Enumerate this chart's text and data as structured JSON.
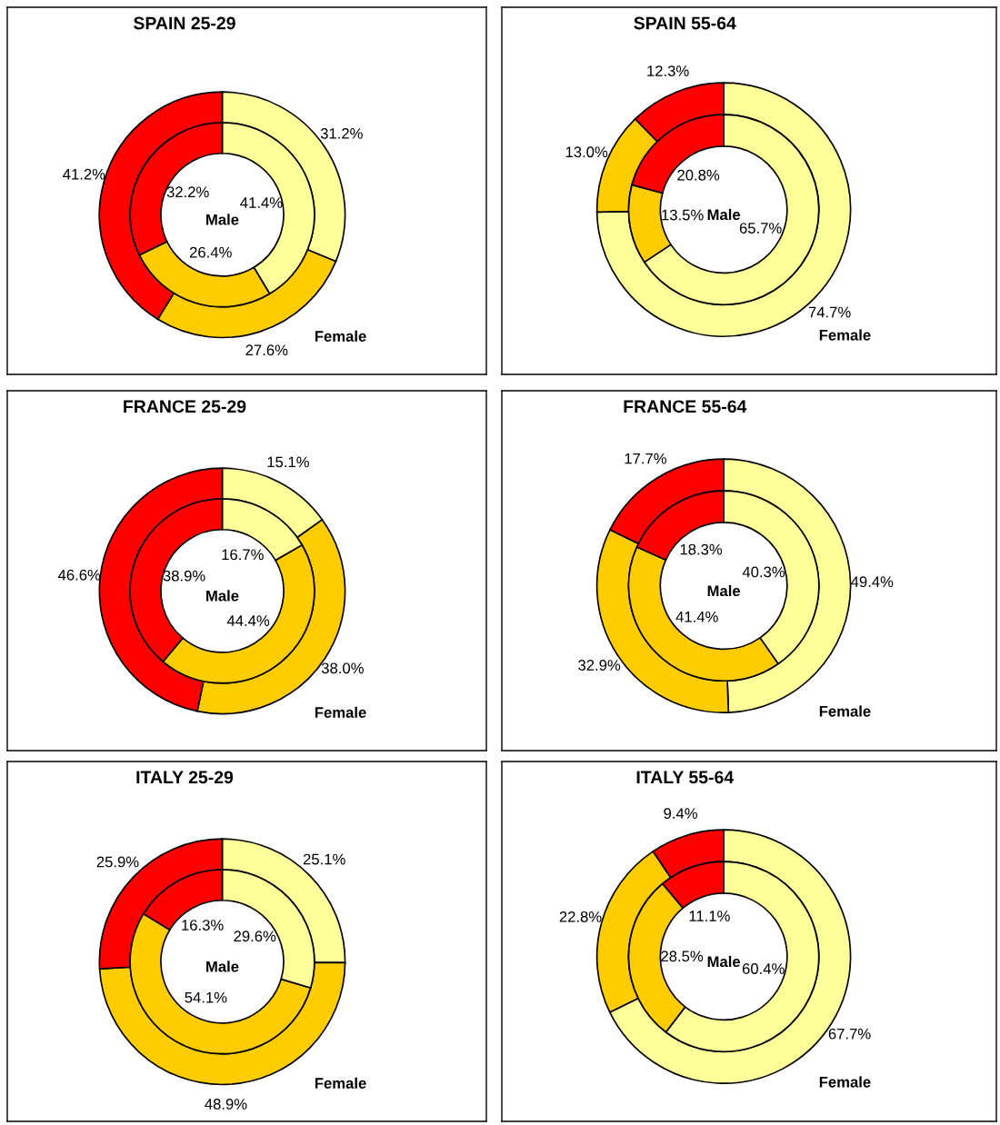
{
  "chart_data": [
    {
      "type": "donut",
      "title": "SPAIN 25-29",
      "categories": [
        null,
        null,
        null
      ],
      "colors": [
        "#ffff99",
        "#ffcc00",
        "#ff0000"
      ],
      "series": [
        {
          "name": "Male",
          "values": [
            41.4,
            26.4,
            32.2
          ],
          "value_labels": [
            "41.4%",
            "26.4%",
            "32.2%"
          ]
        },
        {
          "name": "Female",
          "values": [
            31.2,
            27.6,
            41.2
          ],
          "value_labels": [
            "31.2%",
            "27.6%",
            "41.2%"
          ]
        }
      ]
    },
    {
      "type": "donut",
      "title": "SPAIN 55-64",
      "categories": [
        null,
        null,
        null
      ],
      "colors": [
        "#ffff99",
        "#ffcc00",
        "#ff0000"
      ],
      "series": [
        {
          "name": "Male",
          "values": [
            65.7,
            13.5,
            20.8
          ],
          "value_labels": [
            "65.7%",
            "13.5%",
            "20.8%"
          ]
        },
        {
          "name": "Female",
          "values": [
            74.7,
            13.0,
            12.3
          ],
          "value_labels": [
            "74.7%",
            "13.0%",
            "12.3%"
          ]
        }
      ]
    },
    {
      "type": "donut",
      "title": "FRANCE 25-29",
      "categories": [
        null,
        null,
        null
      ],
      "colors": [
        "#ffff99",
        "#ffcc00",
        "#ff0000"
      ],
      "series": [
        {
          "name": "Male",
          "values": [
            16.7,
            44.4,
            38.9
          ],
          "value_labels": [
            "16.7%",
            "44.4%",
            "38.9%"
          ]
        },
        {
          "name": "Female",
          "values": [
            15.1,
            38.0,
            46.6
          ],
          "value_labels": [
            "15.1%",
            "38.0%",
            "46.6%"
          ]
        }
      ]
    },
    {
      "type": "donut",
      "title": "FRANCE 55-64",
      "categories": [
        null,
        null,
        null
      ],
      "colors": [
        "#ffff99",
        "#ffcc00",
        "#ff0000"
      ],
      "series": [
        {
          "name": "Male",
          "values": [
            40.3,
            41.4,
            18.3
          ],
          "value_labels": [
            "40.3%",
            "41.4%",
            "18.3%"
          ]
        },
        {
          "name": "Female",
          "values": [
            49.4,
            32.9,
            17.7
          ],
          "value_labels": [
            "49.4%",
            "32.9%",
            "17.7%"
          ]
        }
      ]
    },
    {
      "type": "donut",
      "title": "ITALY 25-29",
      "categories": [
        null,
        null,
        null
      ],
      "colors": [
        "#ffff99",
        "#ffcc00",
        "#ff0000"
      ],
      "series": [
        {
          "name": "Male",
          "values": [
            29.6,
            54.1,
            16.3
          ],
          "value_labels": [
            "29.6%",
            "54.1%",
            "16.3%"
          ]
        },
        {
          "name": "Female",
          "values": [
            25.1,
            48.9,
            25.9
          ],
          "value_labels": [
            "25.1%",
            "48.9%",
            "25.9%"
          ]
        }
      ]
    },
    {
      "type": "donut",
      "title": "ITALY 55-64",
      "categories": [
        null,
        null,
        null
      ],
      "colors": [
        "#ffff99",
        "#ffcc00",
        "#ff0000"
      ],
      "series": [
        {
          "name": "Male",
          "values": [
            60.4,
            28.5,
            11.1
          ],
          "value_labels": [
            "60.4%",
            "28.5%",
            "11.1%"
          ]
        },
        {
          "name": "Female",
          "values": [
            67.7,
            22.8,
            9.4
          ],
          "value_labels": [
            "67.7%",
            "22.8%",
            "9.4%"
          ]
        }
      ]
    }
  ]
}
